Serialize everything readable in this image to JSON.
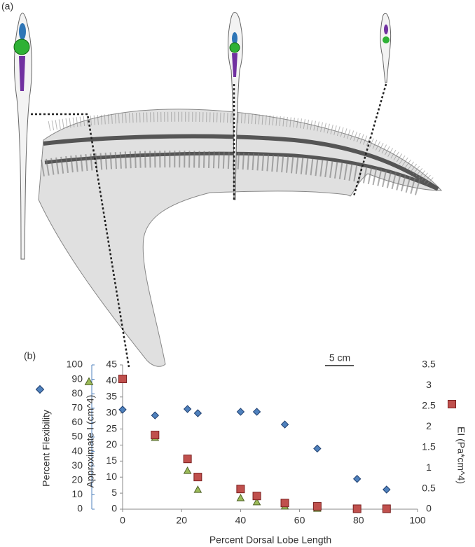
{
  "chart_data": {
    "type": "scatter",
    "panel_labels": [
      "(a)",
      "(b)"
    ],
    "scale_bar": "5 cm",
    "x_label": "Percent Dorsal Lobe Length",
    "xlim": [
      0,
      100
    ],
    "xticks": [
      0,
      20,
      40,
      60,
      80,
      100
    ],
    "ylim": [
      0,
      45
    ],
    "yticks": [
      0,
      5,
      10,
      15,
      20,
      25,
      30,
      35,
      40,
      45
    ],
    "y2lim": [
      0,
      3.5
    ],
    "y2ticks": [
      0,
      0.5,
      1,
      1.5,
      2,
      2.5,
      3,
      3.5
    ],
    "y3lim": [
      0,
      100
    ],
    "y3ticks": [
      0,
      10,
      20,
      30,
      40,
      50,
      60,
      70,
      80,
      90,
      100
    ],
    "series": [
      {
        "name": "Percent Flexibility",
        "color": "#4f81bd",
        "marker": "diamond",
        "axis": "y3",
        "x": [
          0,
          11,
          22,
          25.5,
          40,
          45.5,
          55,
          66,
          79.5,
          89.5
        ],
        "values": [
          69,
          65,
          69.4,
          66.5,
          67.5,
          67.5,
          58.7,
          42,
          21,
          13.6
        ]
      },
      {
        "name": "Approximate I (cm^4)",
        "color": "#9bbb59",
        "marker": "triangle",
        "axis": "y",
        "x": [
          11,
          22,
          25.5,
          40,
          45.5,
          55,
          66,
          79.5,
          89.5
        ],
        "values": [
          22.3,
          12,
          6.1,
          3.5,
          2.2,
          0.9,
          0.2,
          0.05,
          0.02
        ]
      },
      {
        "name": "EI (Pa*cm^4)",
        "color": "#c0504d",
        "marker": "square",
        "axis": "y2",
        "x": [
          0,
          11,
          22,
          25.5,
          40,
          45.5,
          55,
          66,
          79.5,
          89.5
        ],
        "values": [
          3.16,
          1.8,
          1.22,
          0.78,
          0.49,
          0.32,
          0.15,
          0.07,
          0.01,
          0.01
        ]
      }
    ]
  }
}
